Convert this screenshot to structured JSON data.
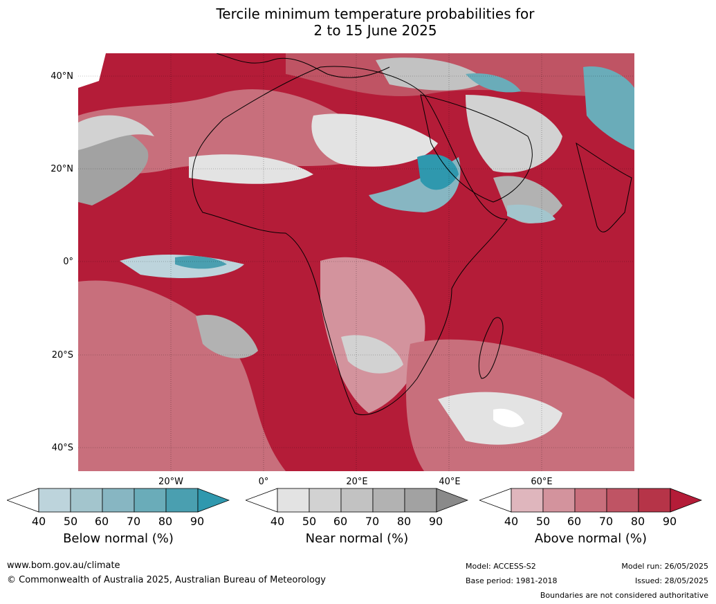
{
  "title_line1": "Tercile minimum temperature probabilities for",
  "title_line2": "2 to 15 June 2025",
  "lat_labels": [
    "40°N",
    "20°N",
    "0°",
    "20°S",
    "40°S"
  ],
  "lon_labels": [
    "20°W",
    "0°",
    "20°E",
    "40°E",
    "60°E"
  ],
  "legends": {
    "below": {
      "title": "Below normal (%)",
      "ticks": [
        "40",
        "50",
        "60",
        "70",
        "80",
        "90"
      ],
      "colors": [
        "#ffffff",
        "#bdd4dc",
        "#a3c5cd",
        "#87b6c2",
        "#6aacb9",
        "#4a9fb0",
        "#2f98ae"
      ]
    },
    "near": {
      "title": "Near normal (%)",
      "ticks": [
        "40",
        "50",
        "60",
        "70",
        "80",
        "90"
      ],
      "colors": [
        "#ffffff",
        "#e3e3e3",
        "#d2d2d2",
        "#c2c2c2",
        "#b2b2b2",
        "#a2a2a2",
        "#8a8a8a"
      ]
    },
    "above": {
      "title": "Above normal (%)",
      "ticks": [
        "40",
        "50",
        "60",
        "70",
        "80",
        "90"
      ],
      "colors": [
        "#ffffff",
        "#dfb6bd",
        "#d3939d",
        "#c86f7c",
        "#bf5464",
        "#b63448",
        "#b41c38"
      ]
    }
  },
  "footer": {
    "website": "www.bom.gov.au/climate",
    "copyright": "© Commonwealth of Australia 2025, Australian Bureau of Meteorology",
    "model": "Model: ACCESS-S2",
    "base_period": "Base period: 1981-2018",
    "model_run": "Model run: 26/05/2025",
    "issued": "Issued: 28/05/2025",
    "disclaimer": "Boundaries are not considered authoritative"
  }
}
